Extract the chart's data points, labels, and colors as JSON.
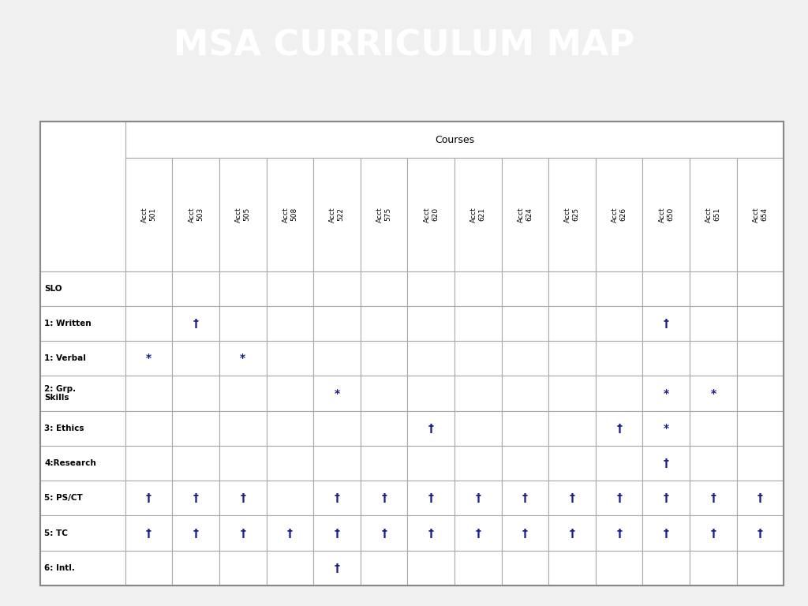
{
  "title": "MSA CURRICULUM MAP",
  "title_bg": "#333333",
  "title_color": "#ffffff",
  "title_fontsize": 32,
  "courses_header": "Courses",
  "col_headers": [
    "Acct\n501",
    "Acct\n503",
    "Acct\n505",
    "Acct\n508",
    "Acct\n522",
    "Acct\n575",
    "Acct\n620",
    "Acct\n621",
    "Acct\n624",
    "Acct\n625",
    "Acct\n626",
    "Acct\n650",
    "Acct\n651",
    "Acct\n654"
  ],
  "row_headers": [
    "SLO",
    "1: Written",
    "1: Verbal",
    "2: Grp.\nSkills",
    "3: Ethics",
    "4:Research",
    "5: PS/CT",
    "5: TC",
    "6: Intl."
  ],
  "cells": [
    [
      "",
      "",
      "",
      "",
      "",
      "",
      "",
      "",
      "",
      "",
      "",
      "",
      "",
      ""
    ],
    [
      "",
      "†",
      "",
      "",
      "",
      "",
      "",
      "",
      "",
      "",
      "",
      "†",
      "",
      ""
    ],
    [
      "*",
      "",
      "*",
      "",
      "",
      "",
      "",
      "",
      "",
      "",
      "",
      "",
      "",
      ""
    ],
    [
      "",
      "",
      "",
      "",
      "*",
      "",
      "",
      "",
      "",
      "",
      "",
      "*",
      "*",
      ""
    ],
    [
      "",
      "",
      "",
      "",
      "",
      "",
      "†",
      "",
      "",
      "",
      "†",
      "*",
      "",
      ""
    ],
    [
      "",
      "",
      "",
      "",
      "",
      "",
      "",
      "",
      "",
      "",
      "",
      "†",
      "",
      ""
    ],
    [
      "†",
      "†",
      "†",
      "",
      "†",
      "†",
      "†",
      "†",
      "†",
      "†",
      "†",
      "†",
      "†",
      "†"
    ],
    [
      "†",
      "†",
      "†",
      "†",
      "†",
      "†",
      "†",
      "†",
      "†",
      "†",
      "†",
      "†",
      "†",
      "†"
    ],
    [
      "",
      "",
      "",
      "",
      "†",
      "",
      "",
      "",
      "",
      "",
      "",
      "",
      "",
      ""
    ]
  ],
  "outer_bg": "#e0e0e0",
  "table_bg": "#ffffff",
  "border_color": "#aaaaaa",
  "cell_text_color": "#1a1a8c",
  "row_header_color": "#000000",
  "col_header_color": "#000000",
  "grid_color": "#aaaaaa"
}
